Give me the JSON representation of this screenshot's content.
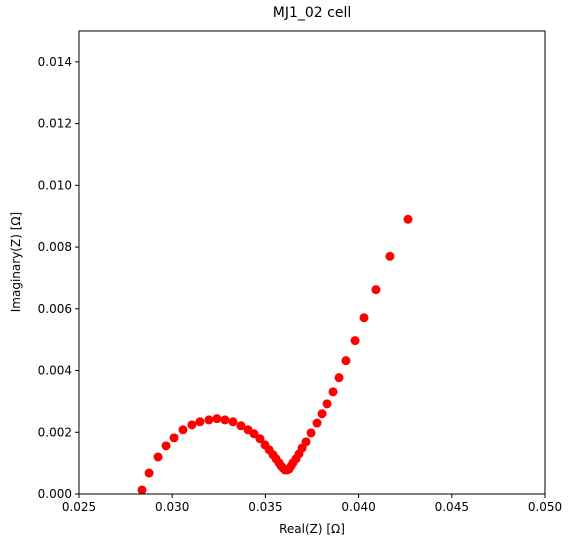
{
  "chart_data": {
    "type": "scatter",
    "title": "MJ1_02 cell",
    "xlabel": "Real(Z) [Ω]",
    "ylabel": "Imaginary(Z) [Ω]",
    "x": [
      0.02838,
      0.02876,
      0.02924,
      0.02967,
      0.0301,
      0.03058,
      0.03106,
      0.03149,
      0.03197,
      0.0324,
      0.03283,
      0.03326,
      0.03369,
      0.03407,
      0.03439,
      0.03471,
      0.03498,
      0.0352,
      0.03541,
      0.03557,
      0.03573,
      0.03584,
      0.03595,
      0.03605,
      0.03616,
      0.03627,
      0.03638,
      0.03648,
      0.03664,
      0.0368,
      0.03697,
      0.03718,
      0.03745,
      0.03777,
      0.03804,
      0.03831,
      0.03863,
      0.03895,
      0.03932,
      0.03981,
      0.04029,
      0.04093,
      0.04168,
      0.04265
    ],
    "series": [
      {
        "color": "#ff0000",
        "values": [
          0.00013,
          0.00068,
          0.0012,
          0.00156,
          0.00182,
          0.00208,
          0.00224,
          0.00234,
          0.0024,
          0.00244,
          0.0024,
          0.00234,
          0.00221,
          0.00208,
          0.00195,
          0.00179,
          0.00159,
          0.00143,
          0.00127,
          0.00114,
          0.00101,
          0.00091,
          0.00084,
          0.00078,
          0.00078,
          0.00081,
          0.00091,
          0.00101,
          0.00114,
          0.0013,
          0.00149,
          0.00169,
          0.00198,
          0.0023,
          0.0026,
          0.00292,
          0.00331,
          0.00377,
          0.00432,
          0.00497,
          0.00571,
          0.00662,
          0.0077,
          0.0089
        ]
      }
    ],
    "xlim": [
      0.025,
      0.05
    ],
    "xticks": [
      0.025,
      {
        "value": 0.03,
        "label": "0.030"
      },
      0.035,
      {
        "value": 0.04,
        "label": "0.040"
      },
      0.045,
      {
        "value": 0.05,
        "label": "0.050"
      }
    ],
    "ylim": [
      0,
      0.015
    ],
    "yticks": [
      {
        "value": 0,
        "label": "0.000"
      },
      0.002,
      0.004,
      0.006,
      0.008,
      {
        "value": 0.01,
        "label": "0.010"
      },
      0.012,
      0.014
    ]
  }
}
